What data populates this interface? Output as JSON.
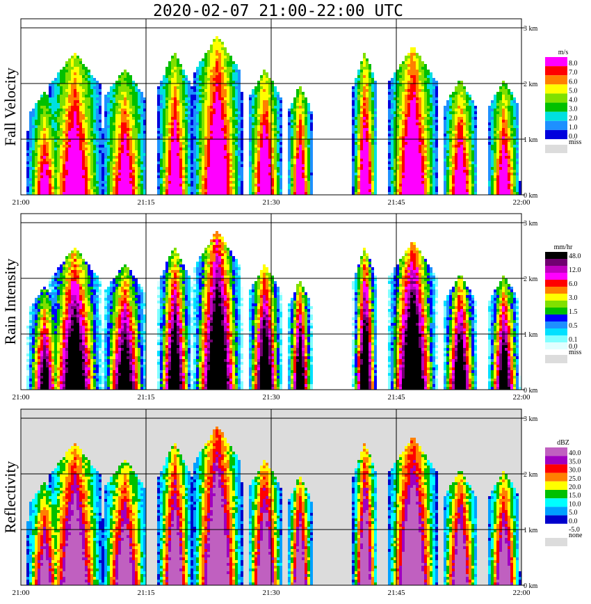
{
  "page_title": "2020-02-07   21:00-22:00 UTC",
  "chart_data": [
    {
      "type": "heatmap",
      "id": "fall-velocity",
      "ylabel": "Fall Velocity",
      "unit": "m/s",
      "xticks": [
        "21:00",
        "21:15",
        "21:30",
        "21:45",
        "22:00"
      ],
      "yticks": [
        "0 km",
        "1 km",
        "2 km",
        "3 km"
      ],
      "ylim": [
        0,
        3
      ],
      "legend": [
        {
          "label": "8.0",
          "color": "#ff00ff"
        },
        {
          "label": "7.0",
          "color": "#ff0000"
        },
        {
          "label": "6.0",
          "color": "#ff8000"
        },
        {
          "label": "5.0",
          "color": "#ffff00"
        },
        {
          "label": "4.0",
          "color": "#80e000"
        },
        {
          "label": "3.0",
          "color": "#00c000"
        },
        {
          "label": "2.0",
          "color": "#00e0e0"
        },
        {
          "label": "1.0",
          "color": "#1e90ff"
        },
        {
          "label": "0.0",
          "color": "#0000dd"
        }
      ],
      "missing": {
        "label": "miss",
        "color": "#dcdcdc"
      }
    },
    {
      "type": "heatmap",
      "id": "rain-intensity",
      "ylabel": "Rain Intensity",
      "unit": "mm/hr",
      "xticks": [
        "21:00",
        "21:15",
        "21:30",
        "21:45",
        "22:00"
      ],
      "yticks": [
        "0 km",
        "1 km",
        "2 km",
        "3 km"
      ],
      "ylim": [
        0,
        3
      ],
      "legend": [
        {
          "label": "48.0",
          "color": "#000000"
        },
        {
          "label": "",
          "color": "#700070"
        },
        {
          "label": "12.0",
          "color": "#c000c0"
        },
        {
          "label": "",
          "color": "#ff00ff"
        },
        {
          "label": "6.0",
          "color": "#ff0000"
        },
        {
          "label": "",
          "color": "#ff8000"
        },
        {
          "label": "3.0",
          "color": "#ffff00"
        },
        {
          "label": "",
          "color": "#80e000"
        },
        {
          "label": "1.5",
          "color": "#00c000"
        },
        {
          "label": "",
          "color": "#0000ff"
        },
        {
          "label": "0.5",
          "color": "#1e90ff"
        },
        {
          "label": "",
          "color": "#00e0ff"
        },
        {
          "label": "0.1",
          "color": "#80ffff"
        },
        {
          "label": "0.0",
          "color": "#e0ffff"
        }
      ],
      "missing": {
        "label": "miss",
        "color": "#dcdcdc"
      }
    },
    {
      "type": "heatmap",
      "id": "reflectivity",
      "ylabel": "Reflectivity",
      "unit": "dBZ",
      "xticks": [
        "21:00",
        "21:15",
        "21:30",
        "21:45",
        "22:00"
      ],
      "yticks": [
        "0 km",
        "1 km",
        "2 km",
        "3 km"
      ],
      "ylim": [
        0,
        3
      ],
      "legend": [
        {
          "label": "40.0",
          "color": "#c060c0"
        },
        {
          "label": "35.0",
          "color": "#a000c0"
        },
        {
          "label": "30.0",
          "color": "#ff0000"
        },
        {
          "label": "25.0",
          "color": "#ff8000"
        },
        {
          "label": "20.0",
          "color": "#ffff00"
        },
        {
          "label": "15.0",
          "color": "#00c000"
        },
        {
          "label": "10.0",
          "color": "#00ffff"
        },
        {
          "label": "5.0",
          "color": "#00a0ff"
        },
        {
          "label": "0.0",
          "color": "#0000cc"
        },
        {
          "label": "-5.0",
          "color": "#ffffff"
        }
      ],
      "missing": {
        "label": "none",
        "color": "#dcdcdc"
      }
    }
  ]
}
